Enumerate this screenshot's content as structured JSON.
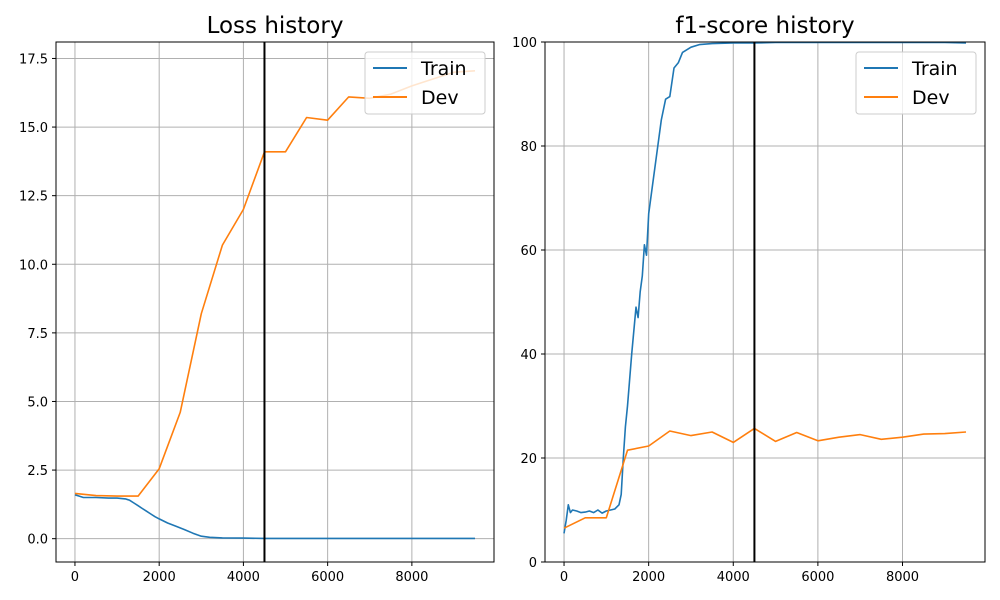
{
  "chart_data": [
    {
      "type": "line",
      "title": "Loss history",
      "xlabel": "",
      "ylabel": "",
      "xlim": [
        -450,
        9950
      ],
      "ylim": [
        -0.85,
        18.1
      ],
      "xticks": [
        0,
        2000,
        4000,
        6000,
        8000
      ],
      "xtick_labels": [
        "0",
        "2000",
        "4000",
        "6000",
        "8000"
      ],
      "yticks": [
        0.0,
        2.5,
        5.0,
        7.5,
        10.0,
        12.5,
        15.0,
        17.5
      ],
      "ytick_labels": [
        "0.0",
        "2.5",
        "5.0",
        "7.5",
        "10.0",
        "12.5",
        "15.0",
        "17.5"
      ],
      "grid": true,
      "legend_position": "top-right",
      "vline_x": 4500,
      "series": [
        {
          "name": "Train",
          "color": "#1f77b4",
          "x": [
            0,
            100,
            200,
            500,
            800,
            1000,
            1200,
            1300,
            1400,
            1500,
            1600,
            1700,
            1800,
            1900,
            2000,
            2200,
            2400,
            2600,
            2800,
            2900,
            3000,
            3200,
            3500,
            4000,
            4500,
            5000,
            6000,
            7000,
            8000,
            9000,
            9500
          ],
          "y": [
            1.6,
            1.55,
            1.5,
            1.5,
            1.48,
            1.48,
            1.45,
            1.4,
            1.3,
            1.2,
            1.1,
            1.0,
            0.9,
            0.8,
            0.72,
            0.57,
            0.45,
            0.33,
            0.2,
            0.14,
            0.09,
            0.05,
            0.03,
            0.02,
            0.01,
            0.01,
            0.01,
            0.01,
            0.01,
            0.01,
            0.01
          ]
        },
        {
          "name": "Dev",
          "color": "#ff7f0e",
          "x": [
            0,
            500,
            1000,
            1500,
            2000,
            2500,
            3000,
            3500,
            4000,
            4500,
            5000,
            5500,
            6000,
            6500,
            7000,
            7500,
            8000,
            8500,
            9000,
            9500
          ],
          "y": [
            1.65,
            1.57,
            1.55,
            1.55,
            2.55,
            4.6,
            8.2,
            10.7,
            12.0,
            14.1,
            14.1,
            15.35,
            15.25,
            16.1,
            16.05,
            16.2,
            16.5,
            16.75,
            17.0,
            17.05
          ]
        }
      ]
    },
    {
      "type": "line",
      "title": "f1-score history",
      "xlabel": "",
      "ylabel": "",
      "xlim": [
        -450,
        9950
      ],
      "ylim": [
        0,
        100
      ],
      "xticks": [
        0,
        2000,
        4000,
        6000,
        8000
      ],
      "xtick_labels": [
        "0",
        "2000",
        "4000",
        "6000",
        "8000"
      ],
      "yticks": [
        0,
        20,
        40,
        60,
        80,
        100
      ],
      "ytick_labels": [
        "0",
        "20",
        "40",
        "60",
        "80",
        "100"
      ],
      "grid": true,
      "legend_position": "top-right",
      "vline_x": 4500,
      "series": [
        {
          "name": "Train",
          "color": "#1f77b4",
          "x": [
            0,
            50,
            100,
            150,
            200,
            300,
            400,
            500,
            600,
            700,
            800,
            900,
            1000,
            1100,
            1200,
            1300,
            1350,
            1400,
            1450,
            1500,
            1600,
            1700,
            1750,
            1800,
            1850,
            1900,
            1950,
            2000,
            2100,
            2200,
            2300,
            2400,
            2500,
            2600,
            2700,
            2800,
            3000,
            3200,
            3500,
            4000,
            4500,
            5000,
            6000,
            7000,
            8000,
            9000,
            9500
          ],
          "y": [
            5.5,
            8,
            11,
            9.5,
            10,
            9.8,
            9.5,
            9.6,
            9.8,
            9.5,
            10,
            9.4,
            9.8,
            10,
            10.2,
            11,
            13,
            20,
            26,
            30,
            40,
            49,
            47,
            52,
            55,
            61,
            59,
            67,
            73,
            79,
            85,
            89,
            89.5,
            95,
            96,
            98,
            99,
            99.5,
            99.7,
            99.8,
            99.8,
            99.9,
            99.9,
            99.9,
            99.9,
            99.9,
            99.8
          ]
        },
        {
          "name": "Dev",
          "color": "#ff7f0e",
          "x": [
            0,
            500,
            1000,
            1500,
            2000,
            2500,
            3000,
            3500,
            4000,
            4500,
            5000,
            5500,
            6000,
            6500,
            7000,
            7500,
            8000,
            8500,
            9000,
            9500
          ],
          "y": [
            6.5,
            8.5,
            8.5,
            21.5,
            22.3,
            25.2,
            24.3,
            25,
            23,
            25.7,
            23.2,
            24.9,
            23.3,
            24,
            24.5,
            23.6,
            24,
            24.6,
            24.7,
            25
          ]
        }
      ]
    }
  ]
}
